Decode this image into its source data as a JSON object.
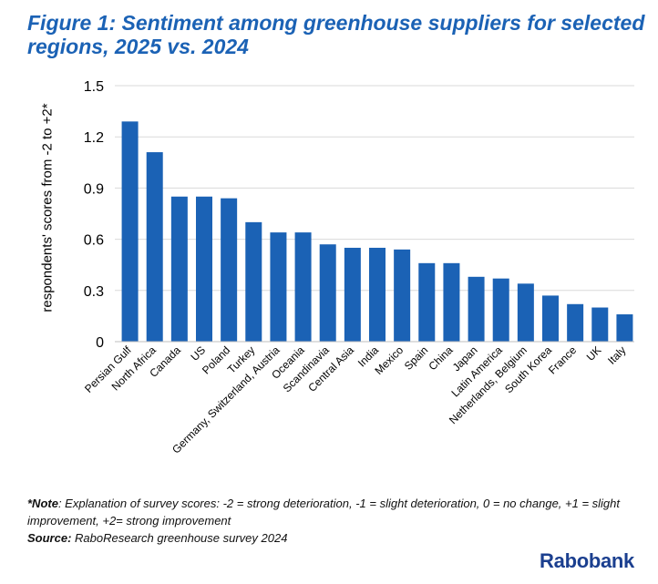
{
  "title_line1": "Figure 1: Sentiment among greenhouse suppliers for selected",
  "title_line2": "regions, 2025 vs. 2024",
  "chart_data": {
    "type": "bar",
    "title": "Figure 1: Sentiment among greenhouse suppliers for selected regions, 2025 vs. 2024",
    "xlabel": "",
    "ylabel": "respondents' scores from -2 to +2*",
    "ylim": [
      0,
      1.5
    ],
    "yticks": [
      "0",
      "0.3",
      "0.6",
      "0.9",
      "1.2",
      "1.5"
    ],
    "ytick_values": [
      0,
      0.3,
      0.6,
      0.9,
      1.2,
      1.5
    ],
    "bar_color": "#1b62b5",
    "grid": true,
    "categories": [
      "Persian Gulf",
      "North Africa",
      "Canada",
      "US",
      "Poland",
      "Turkey",
      "Germany, Switzerland, Austria",
      "Oceania",
      "Scandinavia",
      "Central Asia",
      "India",
      "Mexico",
      "Spain",
      "China",
      "Japan",
      "Latin America",
      "Netherlands, Belgium",
      "South Korea",
      "France",
      "UK",
      "Italy"
    ],
    "values": [
      1.29,
      1.11,
      0.85,
      0.85,
      0.84,
      0.7,
      0.64,
      0.64,
      0.57,
      0.55,
      0.55,
      0.54,
      0.46,
      0.46,
      0.38,
      0.37,
      0.34,
      0.27,
      0.22,
      0.2,
      0.16
    ]
  },
  "note_label": "*Note",
  "note_text": ": Explanation of survey scores: -2 = strong deterioration, -1 = slight deterioration, 0 = no change, +1 = slight improvement, +2= strong improvement",
  "source_label": "Source:",
  "source_text": " RaboResearch greenhouse survey 2024",
  "logo_text": "Rabobank"
}
